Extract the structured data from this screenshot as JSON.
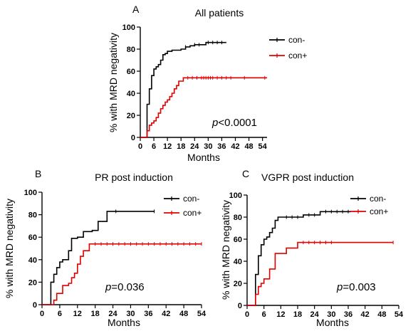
{
  "chart_data": [
    {
      "type": "line",
      "panel_letter": "A",
      "title": "All patients",
      "xlabel": "Months",
      "ylabel": "% with MRD negativity",
      "xlim": [
        0,
        56
      ],
      "ylim": [
        0,
        100
      ],
      "xticks": [
        0,
        6,
        12,
        18,
        24,
        30,
        36,
        42,
        48,
        54
      ],
      "yticks": [
        0,
        20,
        40,
        60,
        80,
        100
      ],
      "xtick_labels": [
        "0",
        "6",
        "12",
        "18",
        "24",
        "30",
        "36",
        "42",
        "48",
        "54"
      ],
      "ytick_labels": [
        "0",
        "20",
        "40",
        "60",
        "80",
        "100"
      ],
      "legend_position": "top-right",
      "annotation": {
        "italic": "p",
        "rest": "<0.0001"
      },
      "series": [
        {
          "name": "con-",
          "color": "#000000",
          "x": [
            0,
            3,
            3,
            4,
            4,
            5,
            5,
            6,
            6,
            7,
            7,
            8,
            8,
            9,
            9,
            10,
            10,
            11,
            11,
            12,
            12,
            14,
            14,
            18,
            18,
            20,
            20,
            22,
            22,
            24,
            24,
            29,
            29,
            38
          ],
          "y": [
            0,
            0,
            30,
            30,
            44,
            44,
            56,
            56,
            62,
            62,
            64,
            64,
            66,
            66,
            70,
            70,
            75,
            75,
            76,
            76,
            78,
            78,
            79,
            79,
            80,
            80,
            82,
            82,
            83,
            83,
            84,
            84,
            86,
            86
          ],
          "censor_x": [
            20,
            24,
            26,
            30,
            32,
            34,
            36
          ]
        },
        {
          "name": "con+",
          "color": "#e00000",
          "x": [
            0,
            3,
            3,
            4,
            4,
            5,
            5,
            6,
            6,
            7,
            7,
            8,
            8,
            9,
            9,
            10,
            10,
            11,
            11,
            12,
            12,
            13,
            13,
            14,
            14,
            15,
            15,
            16,
            16,
            17,
            17,
            19,
            19,
            56
          ],
          "y": [
            0,
            0,
            6,
            6,
            11,
            11,
            13,
            13,
            15,
            15,
            18,
            18,
            22,
            22,
            26,
            26,
            29,
            29,
            32,
            32,
            34,
            34,
            37,
            37,
            40,
            40,
            44,
            44,
            47,
            47,
            51,
            51,
            54,
            54
          ],
          "censor_x": [
            21,
            23,
            25,
            27,
            28,
            29,
            30,
            31,
            32,
            34,
            36,
            38,
            40,
            46,
            55
          ]
        }
      ]
    },
    {
      "type": "line",
      "panel_letter": "B",
      "title": "PR post induction",
      "xlabel": "Months",
      "ylabel": "% with MRD negativity",
      "xlim": [
        0,
        54
      ],
      "ylim": [
        0,
        100
      ],
      "xticks": [
        0,
        6,
        12,
        18,
        24,
        30,
        36,
        42,
        48,
        54
      ],
      "yticks": [
        0,
        20,
        40,
        60,
        80,
        100
      ],
      "xtick_labels": [
        "0",
        "6",
        "12",
        "18",
        "24",
        "30",
        "36",
        "42",
        "48",
        "54"
      ],
      "ytick_labels": [
        "0",
        "20",
        "40",
        "60",
        "80",
        "100"
      ],
      "legend_position": "top-right",
      "annotation": {
        "italic": "p",
        "rest": "=0.036"
      },
      "series": [
        {
          "name": "con-",
          "color": "#000000",
          "x": [
            0,
            3,
            3,
            4,
            4,
            5,
            5,
            6,
            6,
            7,
            7,
            9,
            9,
            10,
            10,
            12,
            12,
            14,
            14,
            17,
            17,
            19,
            19,
            22,
            22,
            38
          ],
          "y": [
            0,
            0,
            20,
            20,
            27,
            27,
            33,
            33,
            38,
            38,
            40,
            40,
            48,
            48,
            59,
            59,
            60,
            60,
            65,
            65,
            66,
            66,
            74,
            74,
            83,
            83
          ],
          "censor_x": [
            25,
            38
          ]
        },
        {
          "name": "con+",
          "color": "#e00000",
          "x": [
            0,
            4,
            4,
            5,
            5,
            7,
            7,
            9,
            9,
            10,
            10,
            11,
            11,
            12,
            12,
            13,
            13,
            14,
            14,
            16,
            16,
            54
          ],
          "y": [
            0,
            0,
            4,
            4,
            10,
            10,
            17,
            17,
            19,
            19,
            24,
            24,
            28,
            28,
            36,
            36,
            43,
            43,
            48,
            48,
            54,
            54
          ],
          "censor_x": [
            18,
            20,
            22,
            24,
            26,
            28,
            30,
            32,
            34,
            36,
            38,
            40,
            42,
            44,
            46,
            48,
            50,
            52,
            54
          ]
        }
      ]
    },
    {
      "type": "line",
      "panel_letter": "C",
      "title": "VGPR post induction",
      "xlabel": "Months",
      "ylabel": "% with MRD negativity",
      "xlim": [
        0,
        54
      ],
      "ylim": [
        0,
        100
      ],
      "xticks": [
        0,
        6,
        12,
        18,
        24,
        30,
        36,
        42,
        48,
        54
      ],
      "yticks": [
        0,
        20,
        40,
        60,
        80,
        100
      ],
      "xtick_labels": [
        "0",
        "6",
        "12",
        "18",
        "24",
        "30",
        "36",
        "42",
        "48",
        "54"
      ],
      "ytick_labels": [
        "0",
        "20",
        "40",
        "60",
        "80",
        "100"
      ],
      "legend_position": "top-right",
      "annotation": {
        "italic": "p",
        "rest": "=0.003"
      },
      "series": [
        {
          "name": "con-",
          "color": "#000000",
          "x": [
            0,
            3,
            3,
            4,
            4,
            5,
            5,
            6,
            6,
            7,
            7,
            8,
            8,
            9,
            9,
            10,
            10,
            11,
            11,
            20,
            20,
            26,
            26,
            37
          ],
          "y": [
            0,
            0,
            28,
            28,
            45,
            45,
            55,
            55,
            60,
            60,
            62,
            62,
            66,
            66,
            70,
            70,
            77,
            77,
            80,
            80,
            82,
            82,
            85,
            85
          ],
          "censor_x": [
            14,
            16,
            18,
            22,
            24,
            28,
            30,
            32,
            34,
            36
          ]
        },
        {
          "name": "con+",
          "color": "#e00000",
          "x": [
            0,
            3,
            3,
            4,
            4,
            5,
            5,
            6,
            6,
            8,
            8,
            10,
            10,
            14,
            14,
            18,
            18,
            52
          ],
          "y": [
            0,
            0,
            10,
            10,
            17,
            17,
            20,
            20,
            24,
            24,
            33,
            33,
            47,
            47,
            52,
            52,
            57,
            57
          ],
          "censor_x": [
            20,
            22,
            24,
            26,
            28,
            30,
            52
          ]
        }
      ]
    }
  ]
}
